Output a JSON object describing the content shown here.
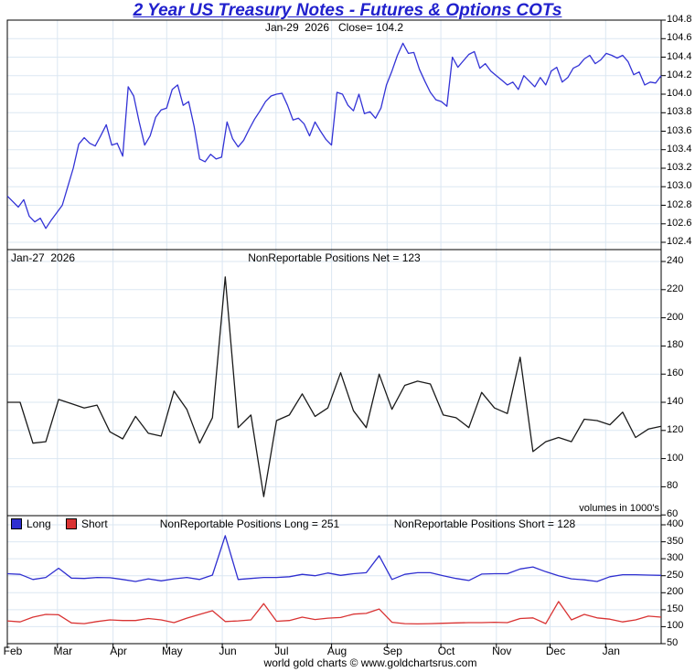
{
  "title": "2 Year US Treasury Notes - Futures & Options COTs",
  "footer": "world gold charts © www.goldchartsrus.com",
  "colors": {
    "title": "#2121cd",
    "grid": "#dbe7f2",
    "frame": "#000000",
    "price_line": "#3333d6",
    "net_line": "#1a1a1a",
    "long_line": "#2f2fd0",
    "short_line": "#d93333"
  },
  "x_axis": {
    "labels": [
      "Feb",
      "Mar",
      "Apr",
      "May",
      "Jun",
      "Jul",
      "Aug",
      "Sep",
      "Oct",
      "Nov",
      "Dec",
      "Jan"
    ]
  },
  "chart_data": [
    {
      "type": "line",
      "title": "2 Year US Treasury Notes - Futures & Options COTs",
      "annotation": "Jan-29  2026   Close= 104.2",
      "ylim": [
        102.4,
        104.8
      ],
      "ytick_step": 0.2,
      "grid": true,
      "series": [
        {
          "name": "price",
          "color": "#3333d6",
          "values": [
            102.9,
            102.84,
            102.78,
            102.86,
            102.68,
            102.62,
            102.66,
            102.55,
            102.64,
            102.72,
            102.8,
            103.0,
            103.2,
            103.46,
            103.53,
            103.47,
            103.44,
            103.55,
            103.67,
            103.45,
            103.47,
            103.33,
            104.08,
            103.98,
            103.7,
            103.45,
            103.55,
            103.75,
            103.83,
            103.85,
            104.05,
            104.1,
            103.88,
            103.92,
            103.65,
            103.3,
            103.27,
            103.35,
            103.3,
            103.32,
            103.7,
            103.52,
            103.43,
            103.5,
            103.62,
            103.73,
            103.82,
            103.92,
            103.98,
            104.0,
            104.01,
            103.88,
            103.72,
            103.74,
            103.68,
            103.55,
            103.7,
            103.6,
            103.51,
            103.45,
            104.02,
            104.0,
            103.88,
            103.82,
            104.0,
            103.79,
            103.81,
            103.74,
            103.85,
            104.1,
            104.25,
            104.42,
            104.55,
            104.44,
            104.45,
            104.27,
            104.14,
            104.02,
            103.94,
            103.92,
            103.87,
            104.4,
            104.29,
            104.36,
            104.43,
            104.46,
            104.28,
            104.33,
            104.25,
            104.2,
            104.15,
            104.1,
            104.13,
            104.05,
            104.2,
            104.14,
            104.08,
            104.18,
            104.1,
            104.25,
            104.29,
            104.13,
            104.18,
            104.28,
            104.31,
            104.38,
            104.42,
            104.33,
            104.37,
            104.44,
            104.42,
            104.39,
            104.42,
            104.35,
            104.21,
            104.24,
            104.1,
            104.13,
            104.12,
            104.2
          ]
        }
      ]
    },
    {
      "type": "line",
      "date_label": "Jan-27  2026",
      "annotation": "NonReportable Positions Net = 123",
      "note": "volumes in 1000's",
      "ylim": [
        60,
        240
      ],
      "ytick_step": 20,
      "grid": true,
      "series": [
        {
          "name": "net",
          "color": "#1a1a1a",
          "values": [
            140,
            140,
            111,
            112,
            142,
            139,
            136,
            138,
            119,
            114,
            130,
            118,
            116,
            148,
            135,
            111,
            129,
            229,
            122,
            131,
            73,
            127,
            131,
            146,
            130,
            136,
            161,
            134,
            122,
            160,
            135,
            152,
            155,
            153,
            131,
            129,
            122,
            147,
            136,
            132,
            172,
            105,
            112,
            115,
            112,
            128,
            127,
            124,
            133,
            115,
            121,
            123
          ]
        }
      ]
    },
    {
      "type": "line",
      "annotation_long": "NonReportable Positions Long = 251",
      "annotation_short": "NonReportable Positions Short = 128",
      "ylim": [
        50,
        400
      ],
      "ytick_step": 50,
      "grid": true,
      "series": [
        {
          "name": "Long",
          "color": "#2f2fd0",
          "values": [
            256,
            254,
            239,
            245,
            272,
            243,
            242,
            245,
            244,
            239,
            233,
            241,
            235,
            241,
            245,
            239,
            252,
            368,
            239,
            242,
            245,
            245,
            247,
            254,
            250,
            258,
            251,
            256,
            259,
            309,
            239,
            254,
            259,
            259,
            250,
            242,
            236,
            255,
            256,
            256,
            270,
            276,
            262,
            250,
            241,
            238,
            233,
            247,
            253,
            253,
            252,
            251
          ]
        },
        {
          "name": "Short",
          "color": "#d93333",
          "values": [
            117,
            114,
            128,
            136,
            135,
            111,
            109,
            115,
            120,
            118,
            118,
            124,
            120,
            112,
            125,
            136,
            147,
            115,
            117,
            120,
            168,
            116,
            118,
            128,
            121,
            125,
            127,
            137,
            139,
            152,
            113,
            109,
            108,
            109,
            110,
            111,
            112,
            112,
            113,
            112,
            124,
            126,
            109,
            174,
            120,
            136,
            126,
            122,
            114,
            120,
            131,
            128
          ]
        }
      ]
    }
  ]
}
